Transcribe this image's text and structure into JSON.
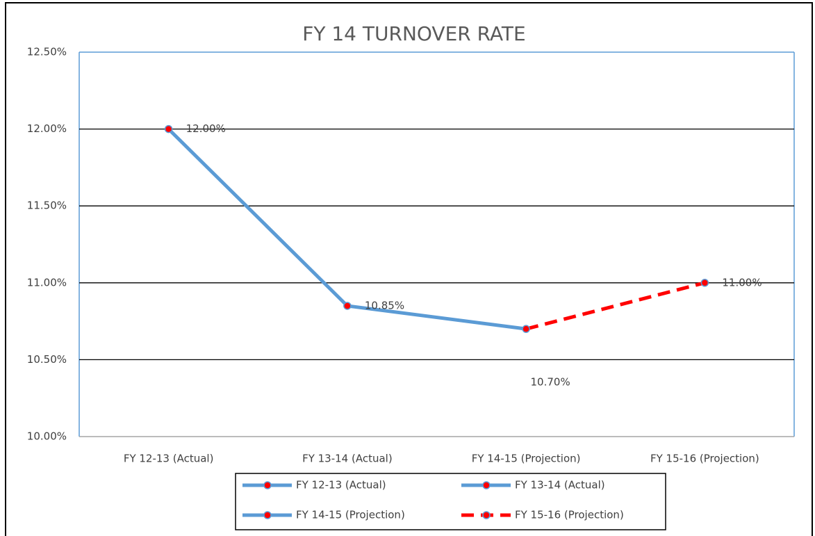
{
  "chart_data": {
    "type": "line",
    "title": "FY 14 TURNOVER RATE",
    "categories": [
      "FY 12-13 (Actual)",
      "FY 13-14 (Actual)",
      "FY 14-15 (Projection)",
      "FY 15-16 (Projection)"
    ],
    "values": [
      12.0,
      10.85,
      10.7,
      11.0
    ],
    "value_labels": [
      "12.00%",
      "10.85%",
      "10.70%",
      "11.00%"
    ],
    "point_color": "#ff0000",
    "legend": [
      {
        "name": "FY 12-13 (Actual)",
        "color": "#5b9bd5",
        "dashed": false
      },
      {
        "name": "FY 13-14 (Actual)",
        "color": "#5b9bd5",
        "dashed": false
      },
      {
        "name": "FY 14-15 (Projection)",
        "color": "#5b9bd5",
        "dashed": false
      },
      {
        "name": "FY 15-16 (Projection)",
        "color": "#ff0000",
        "dashed": true
      }
    ],
    "ylim": [
      10.0,
      12.5
    ],
    "yticks": [
      {
        "value": 10.0,
        "label": "10.00%"
      },
      {
        "value": 10.5,
        "label": "10.50%"
      },
      {
        "value": 11.0,
        "label": "11.00%"
      },
      {
        "value": 11.5,
        "label": "11.50%"
      },
      {
        "value": 12.0,
        "label": "12.00%"
      },
      {
        "value": 12.5,
        "label": "12.50%"
      }
    ],
    "grid": true
  }
}
